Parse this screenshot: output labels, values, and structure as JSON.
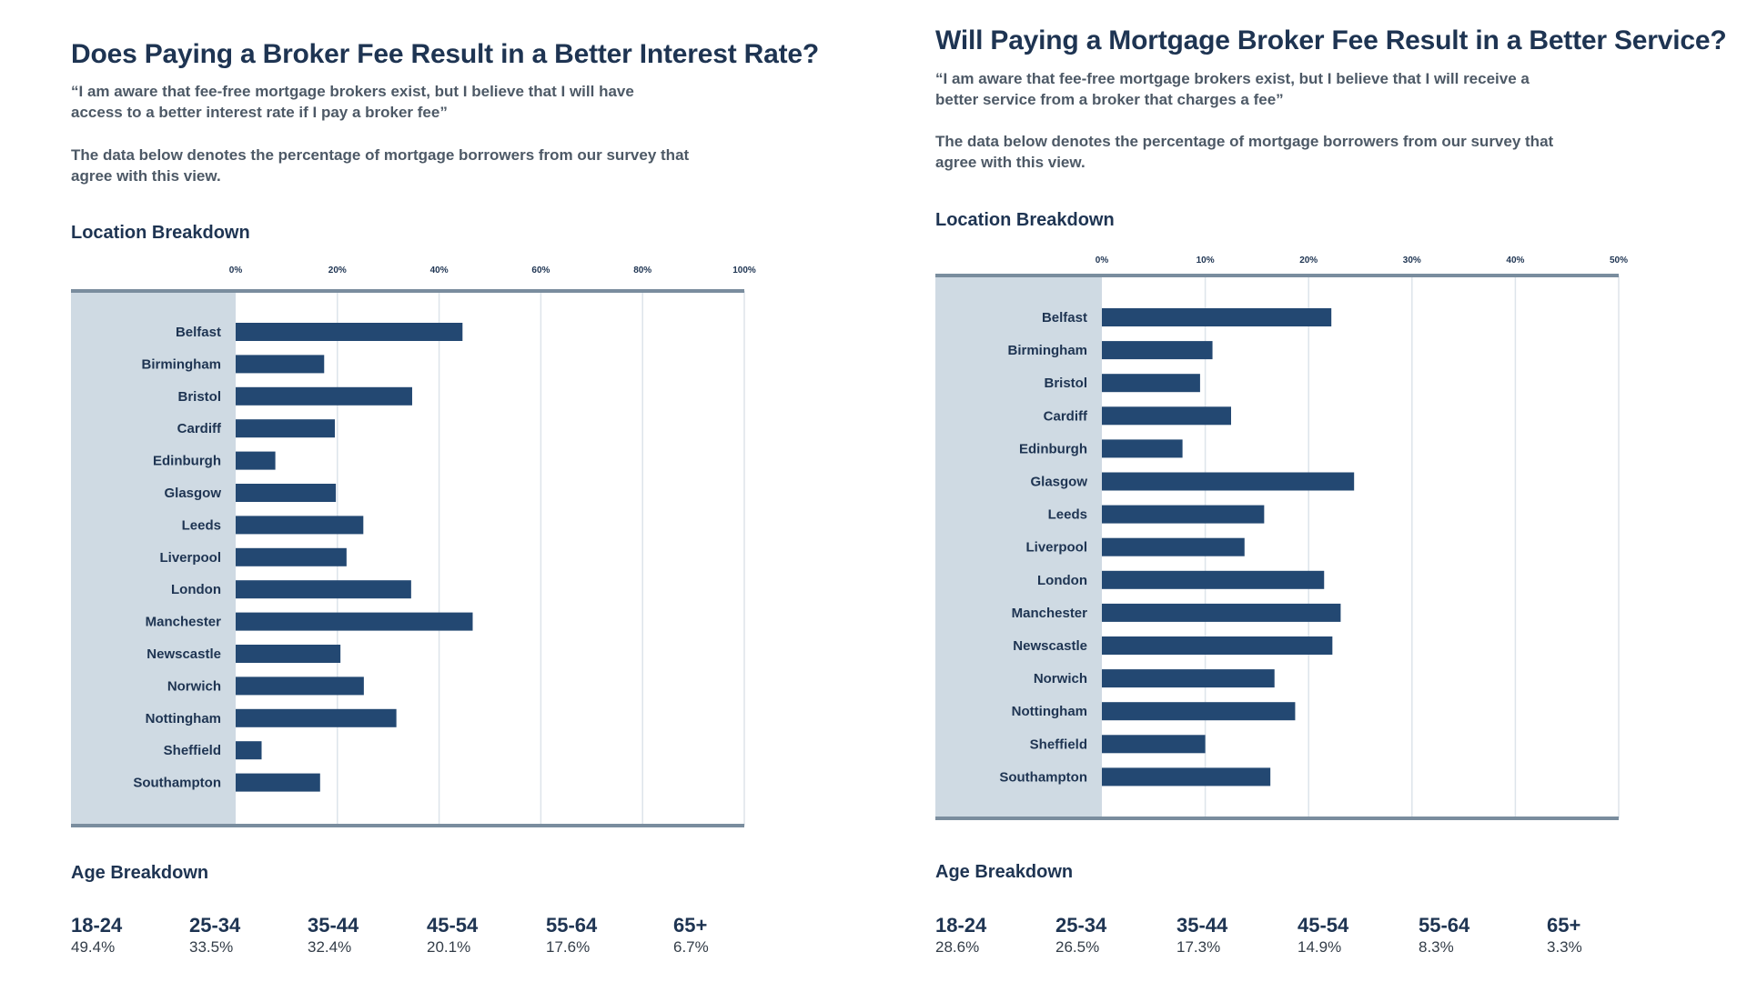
{
  "left": {
    "title": "Does Paying a Broker Fee Result in a Better Interest Rate?",
    "quote": "“I am aware that fee-free mortgage brokers exist, but I believe that I will have access to a better interest rate if I pay a broker fee”",
    "note": "The data below denotes the percentage of mortgage borrowers from our survey that agree with this view.",
    "location_heading": "Location Breakdown",
    "age_heading": "Age Breakdown",
    "ages": [
      {
        "group": "18-24",
        "value": "49.4%"
      },
      {
        "group": "25-34",
        "value": "33.5%"
      },
      {
        "group": "35-44",
        "value": "32.4%"
      },
      {
        "group": "45-54",
        "value": "20.1%"
      },
      {
        "group": "55-64",
        "value": "17.6%"
      },
      {
        "group": "65+",
        "value": "6.7%"
      }
    ]
  },
  "right": {
    "title": "Will Paying a Mortgage Broker Fee Result in a Better Service?",
    "quote": "“I am aware that fee-free mortgage brokers exist, but I believe that I will receive a better service from a broker that charges a fee”",
    "note": "The data below denotes the percentage of mortgage borrowers from our survey that agree with this view.",
    "location_heading": "Location Breakdown",
    "age_heading": "Age Breakdown",
    "ages": [
      {
        "group": "18-24",
        "value": "28.6%"
      },
      {
        "group": "25-34",
        "value": "26.5%"
      },
      {
        "group": "35-44",
        "value": "17.3%"
      },
      {
        "group": "45-54",
        "value": "14.9%"
      },
      {
        "group": "55-64",
        "value": "8.3%"
      },
      {
        "group": "65+",
        "value": "3.3%"
      }
    ]
  },
  "colors": {
    "bar": "#234872",
    "label_band": "#cfdae3",
    "frame_line": "#7a8d9e",
    "grid": "#dde4ea",
    "text": "#1e3452"
  },
  "chart_data": [
    {
      "type": "bar",
      "orientation": "horizontal",
      "title": "Location Breakdown",
      "xlim": [
        0,
        100
      ],
      "ticks": [
        "0%",
        "20%",
        "40%",
        "60%",
        "80%",
        "100%"
      ],
      "tick_values": [
        0,
        20,
        40,
        60,
        80,
        100
      ],
      "grid": true,
      "categories": [
        "Belfast",
        "Birmingham",
        "Bristol",
        "Cardiff",
        "Edinburgh",
        "Glasgow",
        "Leeds",
        "Liverpool",
        "London",
        "Manchester",
        "Newscastle",
        "Norwich",
        "Nottingham",
        "Sheffield",
        "Southampton"
      ],
      "values": [
        44.6,
        17.4,
        34.7,
        19.5,
        7.8,
        19.7,
        25.1,
        21.8,
        34.5,
        46.6,
        20.6,
        25.2,
        31.6,
        5.1,
        16.6
      ]
    },
    {
      "type": "bar",
      "orientation": "horizontal",
      "title": "Location Breakdown",
      "xlim": [
        0,
        50
      ],
      "ticks": [
        "0%",
        "10%",
        "20%",
        "30%",
        "40%",
        "50%"
      ],
      "tick_values": [
        0,
        10,
        20,
        30,
        40,
        50
      ],
      "grid": true,
      "categories": [
        "Belfast",
        "Birmingham",
        "Bristol",
        "Cardiff",
        "Edinburgh",
        "Glasgow",
        "Leeds",
        "Liverpool",
        "London",
        "Manchester",
        "Newscastle",
        "Norwich",
        "Nottingham",
        "Sheffield",
        "Southampton"
      ],
      "values": [
        22.2,
        10.7,
        9.5,
        12.5,
        7.8,
        24.4,
        15.7,
        13.8,
        21.5,
        23.1,
        22.3,
        16.7,
        18.7,
        10.0,
        16.3
      ]
    }
  ]
}
